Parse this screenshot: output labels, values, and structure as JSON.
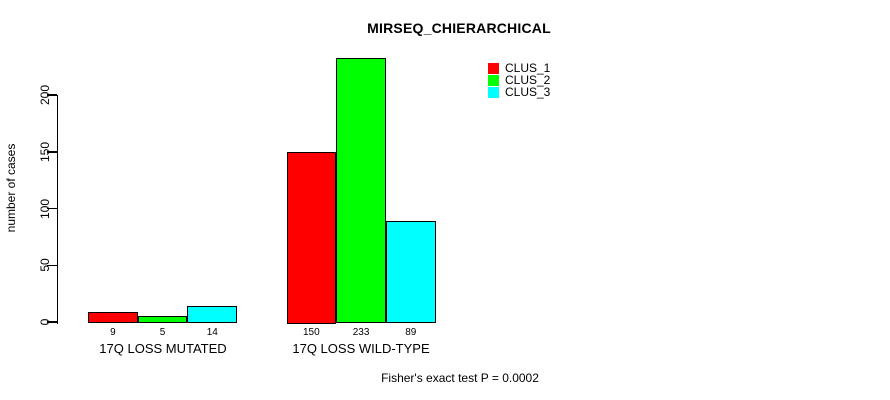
{
  "chart_data": {
    "type": "bar",
    "grouped": true,
    "title": "MIRSEQ_CHIERARCHICAL",
    "ylabel": "number of cases",
    "xlabel": "",
    "categories": [
      "17Q LOSS MUTATED",
      "17Q LOSS WILD-TYPE"
    ],
    "series": [
      {
        "name": "CLUS_1",
        "color": "#ff0000",
        "values": [
          9,
          150
        ]
      },
      {
        "name": "CLUS_2",
        "color": "#00ff00",
        "values": [
          5,
          233
        ]
      },
      {
        "name": "CLUS_3",
        "color": "#00ffff",
        "values": [
          14,
          89
        ]
      }
    ],
    "yticks": [
      0,
      50,
      100,
      150,
      200
    ],
    "ylim": [
      0,
      240
    ],
    "bar_value_labels": [
      [
        "9",
        "5",
        "14"
      ],
      [
        "150",
        "233",
        "89"
      ]
    ],
    "legend_position": "top-right",
    "grid": false,
    "stat_note": "Fisher's exact test P = 0.0002"
  }
}
